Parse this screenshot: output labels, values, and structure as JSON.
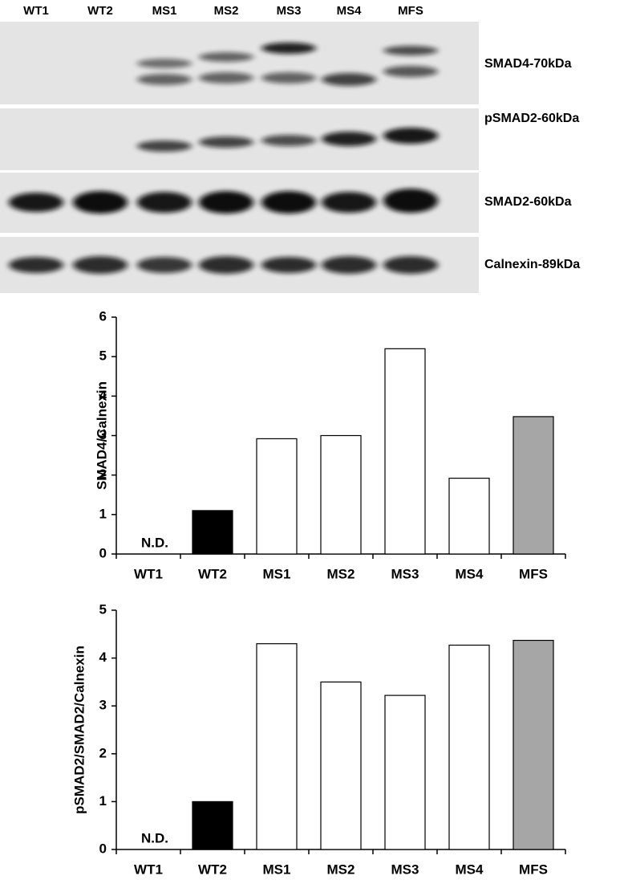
{
  "blot": {
    "lanes": [
      "WT1",
      "WT2",
      "MS1",
      "MS2",
      "MS3",
      "MS4",
      "MFS"
    ],
    "bands": [
      "SMAD4-70kDa",
      "pSMAD2-60kDa",
      "SMAD2-60kDa",
      "Calnexin-89kDa"
    ]
  },
  "chart_data": [
    {
      "type": "bar",
      "y_label": "SMAD4/Calnexin",
      "categories": [
        "WT1",
        "WT2",
        "MS1",
        "MS2",
        "MS3",
        "MS4",
        "MFS"
      ],
      "values": [
        null,
        1.1,
        2.92,
        3.0,
        5.2,
        1.92,
        3.48
      ],
      "value_labels": [
        "N.D.",
        null,
        null,
        null,
        null,
        null,
        null
      ],
      "colors": [
        null,
        "#000000",
        "#ffffff",
        "#ffffff",
        "#ffffff",
        "#ffffff",
        "#a6a6a6"
      ],
      "ylim": [
        0,
        6
      ],
      "yticks": [
        0,
        1,
        2,
        3,
        4,
        5,
        6
      ]
    },
    {
      "type": "bar",
      "y_label": "pSMAD2/SMAD2/Calnexin",
      "categories": [
        "WT1",
        "WT2",
        "MS1",
        "MS2",
        "MS3",
        "MS4",
        "MFS"
      ],
      "values": [
        null,
        1.0,
        4.3,
        3.5,
        3.22,
        4.27,
        4.37
      ],
      "value_labels": [
        "N.D.",
        null,
        null,
        null,
        null,
        null,
        null
      ],
      "colors": [
        null,
        "#000000",
        "#ffffff",
        "#ffffff",
        "#ffffff",
        "#ffffff",
        "#a6a6a6"
      ],
      "ylim": [
        0,
        5
      ],
      "yticks": [
        0,
        1,
        2,
        3,
        4,
        5
      ]
    }
  ]
}
